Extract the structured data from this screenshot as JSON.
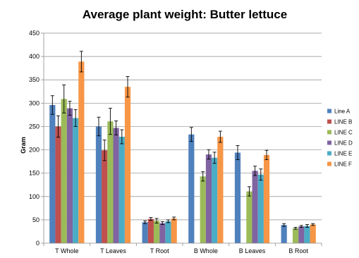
{
  "chart_data": {
    "type": "bar",
    "title": "Average plant weight: Butter lettuce",
    "xlabel": "",
    "ylabel": "Gram",
    "ylim": [
      0,
      450
    ],
    "yticks": [
      0,
      50,
      100,
      150,
      200,
      250,
      300,
      350,
      400,
      450
    ],
    "grid": true,
    "legend_position": "right",
    "categories": [
      "T Whole",
      "T Leaves",
      "T Root",
      "B Whole",
      "B Leaves",
      "B Root"
    ],
    "series": [
      {
        "name": "Line A",
        "color": "#4F81BD",
        "values": [
          296,
          250,
          45,
          233,
          194,
          39
        ],
        "errors": [
          20,
          20,
          3,
          15,
          15,
          3
        ]
      },
      {
        "name": "LINE B",
        "color": "#C0504D",
        "values": [
          250,
          199,
          52,
          null,
          null,
          null
        ],
        "errors": [
          23,
          22,
          3,
          null,
          null,
          null
        ]
      },
      {
        "name": "LINE C",
        "color": "#9BBB59",
        "values": [
          309,
          261,
          48,
          143,
          111,
          32
        ],
        "errors": [
          30,
          28,
          5,
          10,
          10,
          2
        ]
      },
      {
        "name": "LINE D",
        "color": "#8064A2",
        "values": [
          289,
          247,
          43,
          190,
          155,
          36
        ],
        "errors": [
          15,
          15,
          3,
          10,
          10,
          2
        ]
      },
      {
        "name": "LINE E",
        "color": "#4BACC6",
        "values": [
          268,
          228,
          47,
          183,
          147,
          37
        ],
        "errors": [
          18,
          15,
          3,
          12,
          12,
          3
        ]
      },
      {
        "name": "LINE F",
        "color": "#F79646",
        "values": [
          389,
          335,
          53,
          228,
          189,
          40
        ],
        "errors": [
          22,
          22,
          3,
          12,
          10,
          2
        ]
      }
    ]
  }
}
